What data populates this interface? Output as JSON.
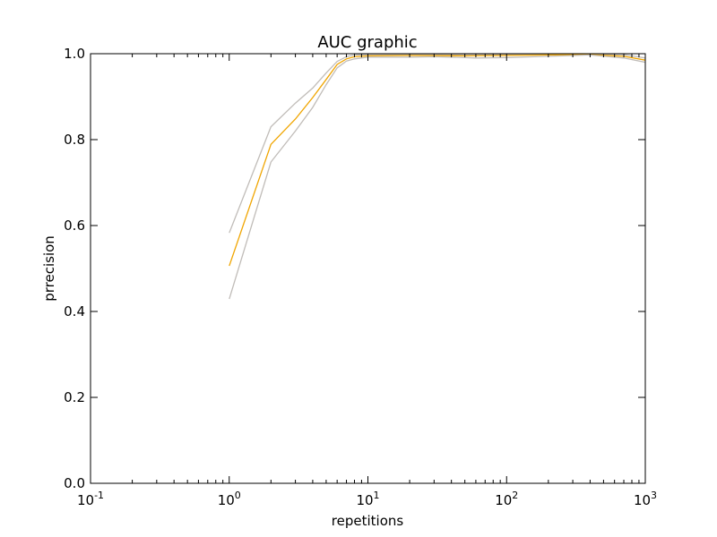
{
  "chart_data": {
    "type": "line",
    "title": "AUC graphic",
    "xlabel": "repetitions",
    "ylabel": "prrecision",
    "xscale": "log",
    "xlim": [
      0.1,
      1000
    ],
    "ylim": [
      0.0,
      1.0
    ],
    "grid": false,
    "x_ticks": [
      {
        "base": "10",
        "exp": "-1"
      },
      {
        "base": "10",
        "exp": "0"
      },
      {
        "base": "10",
        "exp": "1"
      },
      {
        "base": "10",
        "exp": "2"
      },
      {
        "base": "10",
        "exp": "3"
      }
    ],
    "y_ticks": [
      "0.0",
      "0.2",
      "0.4",
      "0.6",
      "0.8",
      "1.0"
    ],
    "series": [
      {
        "role": "upper-bound",
        "color": "#c0bcb8",
        "x": [
          1,
          2,
          3,
          4,
          5,
          6,
          7,
          8,
          10,
          20,
          50,
          100,
          200,
          400,
          700,
          1000
        ],
        "y": [
          0.583,
          0.83,
          0.885,
          0.92,
          0.955,
          0.982,
          0.993,
          0.997,
          0.998,
          0.998,
          0.998,
          0.998,
          0.999,
          0.999,
          0.998,
          0.99
        ]
      },
      {
        "role": "mean",
        "color": "#f0a500",
        "x": [
          1,
          2,
          3,
          4,
          5,
          6,
          7,
          8,
          10,
          20,
          50,
          100,
          200,
          400,
          700,
          1000
        ],
        "y": [
          0.506,
          0.789,
          0.848,
          0.898,
          0.94,
          0.975,
          0.988,
          0.993,
          0.995,
          0.996,
          0.995,
          0.996,
          0.997,
          0.998,
          0.994,
          0.985
        ]
      },
      {
        "role": "lower-bound",
        "color": "#c0bcb8",
        "x": [
          1,
          2,
          3,
          4,
          5,
          6,
          7,
          8,
          10,
          20,
          30,
          50,
          60,
          100,
          200,
          400,
          700,
          1000
        ],
        "y": [
          0.429,
          0.748,
          0.82,
          0.875,
          0.928,
          0.967,
          0.983,
          0.988,
          0.992,
          0.992,
          0.993,
          0.991,
          0.99,
          0.991,
          0.994,
          0.997,
          0.99,
          0.98
        ]
      }
    ]
  }
}
